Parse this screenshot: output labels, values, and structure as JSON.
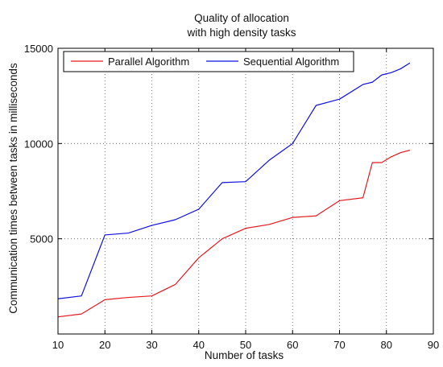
{
  "chart_data": {
    "type": "line",
    "title_lines": [
      "Quality of allocation",
      "with high density tasks"
    ],
    "xlabel": "Number of tasks",
    "ylabel": "Communication times between tasks in milliseconds",
    "xlim": [
      10,
      90
    ],
    "ylim": [
      0,
      15000
    ],
    "xticks": [
      10,
      20,
      30,
      40,
      50,
      60,
      70,
      80,
      90
    ],
    "yticks": [
      0,
      5000,
      10000,
      15000
    ],
    "ytick_labels": [
      "",
      "5000",
      "10000",
      "15000"
    ],
    "grid": true,
    "grid_style": "dotted",
    "legend": {
      "placement": "top-left",
      "orientation": "horizontal"
    },
    "series": [
      {
        "name": "Parallel Algorithm",
        "color": "#e8191e",
        "x": [
          10,
          15,
          20,
          25,
          30,
          35,
          40,
          45,
          50,
          55,
          60,
          65,
          70,
          75,
          77,
          79,
          81,
          83,
          85
        ],
        "values": [
          900,
          1050,
          1800,
          1920,
          2000,
          2600,
          4000,
          5000,
          5550,
          5750,
          6120,
          6200,
          7000,
          7150,
          9000,
          9000,
          9300,
          9520,
          9650
        ]
      },
      {
        "name": "Sequential Algorithm",
        "color": "#1010e0",
        "x": [
          10,
          15,
          20,
          25,
          30,
          35,
          40,
          45,
          50,
          55,
          60,
          65,
          70,
          75,
          77,
          79,
          81,
          83,
          85
        ],
        "values": [
          1850,
          2000,
          5200,
          5300,
          5700,
          6000,
          6550,
          7950,
          8000,
          9120,
          10000,
          12000,
          12330,
          13100,
          13220,
          13600,
          13720,
          13920,
          14230
        ]
      }
    ]
  }
}
